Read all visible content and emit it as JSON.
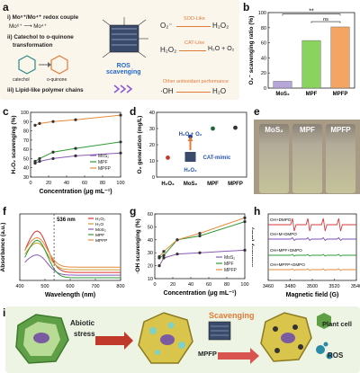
{
  "panel_labels": [
    "a",
    "b",
    "c",
    "d",
    "e",
    "f",
    "g",
    "h",
    "i"
  ],
  "panel_a": {
    "items": [
      "i) Mo⁶⁺/Mo⁴⁺ redox couple",
      "Mo⁶⁺ ⟶ Mo⁴⁺",
      "ii) Catechol to o-quinone",
      "transformation",
      "catechol",
      "o-quinone",
      "iii) Lipid-like polymer chains"
    ],
    "center_label": "ROS\nscavenging",
    "center_line1": "ROS",
    "center_line2": "scavenging",
    "reactions": [
      {
        "left": "O₂⁻",
        "tag": "SOD-Like",
        "right": "H₂O₂"
      },
      {
        "left": "H₂O₂",
        "tag": "CAT-Like",
        "right": "H₂O + O₂"
      },
      {
        "left": "·OH",
        "tag": "Other antioxidant performance",
        "right": "H₂O"
      }
    ]
  },
  "panel_e": {
    "labels": [
      "MoS₂",
      "MPF",
      "MPFP"
    ]
  },
  "panel_i": {
    "labels": [
      "Abiotic",
      "stress",
      "MPFP",
      "Scavenging",
      "Plant cell",
      "ROS"
    ]
  },
  "chart_data": [
    {
      "panel": "b",
      "type": "bar",
      "categories": [
        "MoS₂",
        "MPF",
        "MPFP"
      ],
      "values": [
        9,
        63,
        81
      ],
      "colors": [
        "#b6a7d8",
        "#8bd35f",
        "#f4a463"
      ],
      "ylabel": "O₂⁻ scavenging ratio (%)",
      "ylim": [
        0,
        100
      ],
      "yticks": [
        0,
        20,
        40,
        60,
        80,
        100
      ],
      "annotations": [
        "**",
        "ns"
      ]
    },
    {
      "panel": "c",
      "type": "line",
      "x": [
        5,
        10,
        25,
        50,
        100
      ],
      "series": [
        {
          "name": "MoS₂",
          "values": [
            45,
            47,
            50,
            53,
            56
          ],
          "color": "#8a5bb5"
        },
        {
          "name": "MPF",
          "values": [
            47,
            50,
            57,
            61,
            68
          ],
          "color": "#2e9a33"
        },
        {
          "name": "MPFP",
          "values": [
            86,
            88,
            90,
            92,
            97
          ],
          "color": "#e58a3a"
        }
      ],
      "xlabel": "Concentration (μg mL⁻¹)",
      "ylabel": "H₂O₂ scavenging (%)",
      "xlim": [
        0,
        100
      ],
      "ylim": [
        30,
        100
      ],
      "xticks": [
        0,
        20,
        40,
        60,
        80,
        100
      ],
      "yticks": [
        30,
        40,
        50,
        60,
        70,
        80,
        90,
        100
      ]
    },
    {
      "panel": "d",
      "type": "scatter",
      "categories": [
        "H₂O₂",
        "MoS₂",
        "MPF",
        "MPFP"
      ],
      "values": [
        12,
        25,
        30,
        30.5
      ],
      "colors": [
        "#c0392b",
        "#1f3f9a",
        "#1a6b34",
        "#333333"
      ],
      "ylabel": "O₂ generation (mg/L)",
      "ylim": [
        0,
        40
      ],
      "yticks": [
        0,
        10,
        20,
        30,
        40
      ],
      "annotations": [
        "H₂O + O₂",
        "CAT-mimic",
        "H₂O₂"
      ]
    },
    {
      "panel": "f",
      "type": "line",
      "series": [
        {
          "name": "H₂O₂",
          "color": "#e03030"
        },
        {
          "name": "H₂O",
          "color": "#c8a02a"
        },
        {
          "name": "MoS₂",
          "color": "#8a5bb5"
        },
        {
          "name": "MPF",
          "color": "#2e9a33"
        },
        {
          "name": "MPFP",
          "color": "#e58a3a"
        }
      ],
      "annotations": [
        "536 nm"
      ],
      "xlabel": "Wavelength (nm)",
      "ylabel": "Absorbance (a.u.)",
      "xlim": [
        400,
        800
      ],
      "xticks": [
        400,
        500,
        600,
        700,
        800
      ]
    },
    {
      "panel": "g",
      "type": "line",
      "x": [
        5,
        10,
        25,
        50,
        100
      ],
      "series": [
        {
          "name": "MoS₂",
          "values": [
            20,
            26,
            29,
            30,
            32
          ],
          "color": "#8a5bb5"
        },
        {
          "name": "MPF",
          "values": [
            26,
            28,
            40,
            43,
            54
          ],
          "color": "#2e9a33"
        },
        {
          "name": "MPFP",
          "values": [
            27,
            31,
            40,
            45,
            57
          ],
          "color": "#e58a3a"
        }
      ],
      "xlabel": "Concentration (μg mL⁻¹)",
      "ylabel": "·OH scavenging (%)",
      "xlim": [
        0,
        100
      ],
      "ylim": [
        10,
        60
      ],
      "xticks": [
        0,
        20,
        40,
        60,
        80,
        100
      ],
      "yticks": [
        10,
        20,
        30,
        40,
        50,
        60
      ]
    },
    {
      "panel": "h",
      "type": "line",
      "series": [
        {
          "name": "OH+DMPO",
          "color": "#d63b3b"
        },
        {
          "name": "OH+M+DMPO",
          "color": "#7d4fb5"
        },
        {
          "name": "OH+MPF+DMPO",
          "color": "#2e9a33"
        },
        {
          "name": "OH+MPFP+DMPO",
          "color": "#e58a3a"
        }
      ],
      "xlabel": "Magnetic field (G)",
      "ylabel": "Intensity (a.u.)",
      "xlim": [
        3460,
        3540
      ],
      "xticks": [
        3460,
        3480,
        3500,
        3520,
        3540
      ]
    }
  ]
}
